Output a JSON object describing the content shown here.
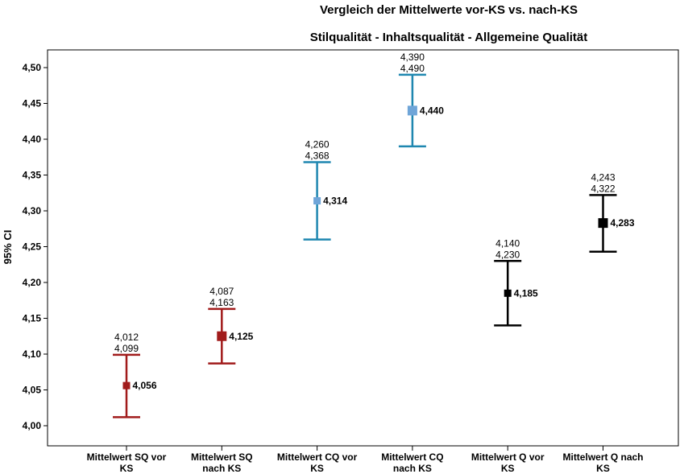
{
  "chart_data": {
    "type": "errorbar",
    "title": "Vergleich der Mittelwerte vor-KS vs. nach-KS",
    "subtitle": "Stilqualität - Inhaltsqualität - Allgemeine Qualität",
    "ylabel": "95% CI",
    "xlabel": "",
    "ylim": [
      3.98,
      4.535
    ],
    "yticks": [
      "4,00",
      "4,05",
      "4,10",
      "4,15",
      "4,20",
      "4,25",
      "4,30",
      "4,35",
      "4,40",
      "4,45",
      "4,50"
    ],
    "ytick_values": [
      4.0,
      4.05,
      4.1,
      4.15,
      4.2,
      4.25,
      4.3,
      4.35,
      4.4,
      4.45,
      4.5
    ],
    "grid": false,
    "categories": [
      [
        "Mittelwert SQ vor",
        "KS"
      ],
      [
        "Mittelwert SQ",
        "nach KS"
      ],
      [
        "Mittelwert CQ vor",
        "KS"
      ],
      [
        "Mittelwert CQ",
        "nach KS"
      ],
      [
        "Mittelwert Q vor",
        "KS"
      ],
      [
        "Mittelwert Q nach",
        "KS"
      ]
    ],
    "points": [
      {
        "mean": 4.056,
        "lower": 4.012,
        "upper": 4.099,
        "mean_label": "4,056",
        "lower_label": "4,012",
        "upper_label": "4,099",
        "color": "#a11b1b",
        "marker_color": "#a11b1b",
        "marker": "small"
      },
      {
        "mean": 4.125,
        "lower": 4.087,
        "upper": 4.163,
        "mean_label": "4,125",
        "lower_label": "4,087",
        "upper_label": "4,163",
        "color": "#a11b1b",
        "marker_color": "#a11b1b",
        "marker": "large"
      },
      {
        "mean": 4.314,
        "lower": 4.26,
        "upper": 4.368,
        "mean_label": "4,314",
        "lower_label": "4,260",
        "upper_label": "4,368",
        "color": "#1f87b0",
        "marker_color": "#6fa5d8",
        "marker": "small"
      },
      {
        "mean": 4.44,
        "lower": 4.39,
        "upper": 4.49,
        "mean_label": "4,440",
        "lower_label": "4,390",
        "upper_label": "4,490",
        "color": "#1f87b0",
        "marker_color": "#6fa5d8",
        "marker": "large"
      },
      {
        "mean": 4.185,
        "lower": 4.14,
        "upper": 4.23,
        "mean_label": "4,185",
        "lower_label": "4,140",
        "upper_label": "4,230",
        "color": "#000000",
        "marker_color": "#000000",
        "marker": "small"
      },
      {
        "mean": 4.283,
        "lower": 4.243,
        "upper": 4.322,
        "mean_label": "4,283",
        "lower_label": "4,243",
        "upper_label": "4,322",
        "color": "#000000",
        "marker_color": "#000000",
        "marker": "large"
      }
    ]
  }
}
